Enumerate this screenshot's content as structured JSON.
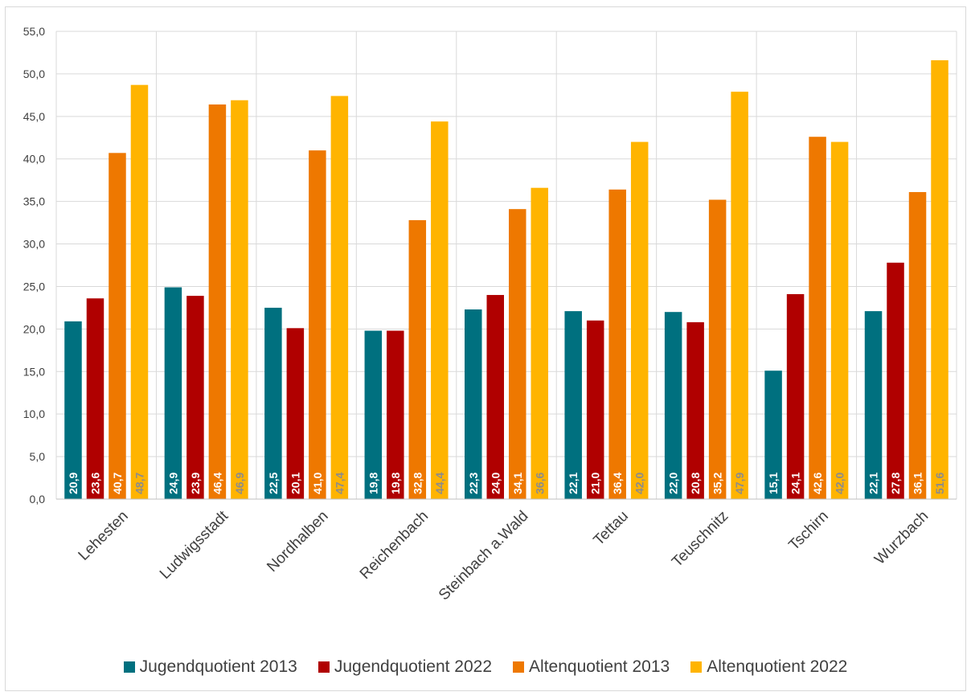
{
  "title": "",
  "chart_data": {
    "type": "bar",
    "title": "",
    "xlabel": "",
    "ylabel": "",
    "ylim": [
      0,
      55
    ],
    "y_ticks": [
      "0,0",
      "5,0",
      "10,0",
      "15,0",
      "20,0",
      "25,0",
      "30,0",
      "35,0",
      "40,0",
      "45,0",
      "50,0",
      "55,0"
    ],
    "grid": true,
    "legend_position": "bottom",
    "categories": [
      "Lehesten",
      "Ludwigsstadt",
      "Nordhalben",
      "Reichenbach",
      "Steinbach a.Wald",
      "Tettau",
      "Teuschnitz",
      "Tschirn",
      "Wurzbach"
    ],
    "series": [
      {
        "name": "Jugendquotient 2013",
        "color": "#00707f",
        "label_color": "#ffffff",
        "values": [
          20.9,
          24.9,
          22.5,
          19.8,
          22.3,
          22.1,
          22.0,
          15.1,
          22.1
        ],
        "labels": [
          "20,9",
          "24,9",
          "22,5",
          "19,8",
          "22,3",
          "22,1",
          "22,0",
          "15,1",
          "22,1"
        ]
      },
      {
        "name": "Jugendquotient 2022",
        "color": "#b00000",
        "label_color": "#ffffff",
        "values": [
          23.6,
          23.9,
          20.1,
          19.8,
          24.0,
          21.0,
          20.8,
          24.1,
          27.8
        ],
        "labels": [
          "23,6",
          "23,9",
          "20,1",
          "19,8",
          "24,0",
          "21,0",
          "20,8",
          "24,1",
          "27,8"
        ]
      },
      {
        "name": "Altenquotient 2013",
        "color": "#ee7800",
        "label_color": "#ffffff",
        "values": [
          40.7,
          46.4,
          41.0,
          32.8,
          34.1,
          36.4,
          35.2,
          42.6,
          36.1
        ],
        "labels": [
          "40,7",
          "46,4",
          "41,0",
          "32,8",
          "34,1",
          "36,4",
          "35,2",
          "42,6",
          "36,1"
        ]
      },
      {
        "name": "Altenquotient 2022",
        "color": "#ffb400",
        "label_color": "#8c8c8c",
        "values": [
          48.7,
          46.9,
          47.4,
          44.4,
          36.6,
          42.0,
          47.9,
          42.0,
          51.6
        ],
        "labels": [
          "48,7",
          "46,9",
          "47,4",
          "44,4",
          "36,6",
          "42,0",
          "47,9",
          "42,0",
          "51,6"
        ]
      }
    ]
  }
}
